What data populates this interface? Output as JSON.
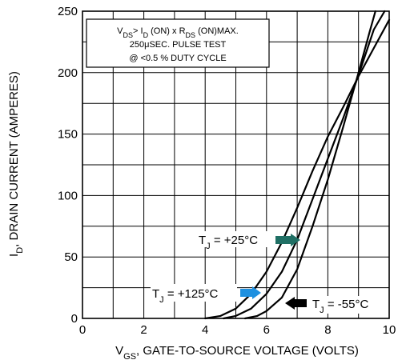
{
  "chart_data": {
    "type": "line",
    "xlabel": {
      "main": "V",
      "sub": "GS",
      "rest": ", GATE-TO-SOURCE VOLTAGE (VOLTS)"
    },
    "ylabel": {
      "main": "I",
      "sub": "D",
      "rest": ", DRAIN CURRENT (AMPERES)"
    },
    "xlim": [
      0,
      10
    ],
    "ylim": [
      0,
      250
    ],
    "xticks": [
      0,
      2,
      4,
      6,
      8,
      10
    ],
    "yticks": [
      0,
      50,
      100,
      150,
      200,
      250
    ],
    "grid": true,
    "note": {
      "line1": {
        "a": "V",
        "a_sub": "DS",
        "b": "> I",
        "b_sub": "D",
        "c": " (ON) x  R",
        "c_sub": "DS",
        "d": " (ON)MAX."
      },
      "line2": "250μSEC.  PULSE  TEST",
      "line3": "@  <0.5 %  DUTY  CYCLE"
    },
    "series": [
      {
        "name": {
          "main": "T",
          "sub": "J",
          "rest": " = +125°C"
        },
        "color": "#1e90e0",
        "points": [
          [
            4.0,
            0
          ],
          [
            4.5,
            2
          ],
          [
            5.0,
            8
          ],
          [
            5.5,
            20
          ],
          [
            6.0,
            38
          ],
          [
            6.5,
            62
          ],
          [
            7.0,
            90
          ],
          [
            7.5,
            120
          ],
          [
            8.0,
            148
          ],
          [
            8.5,
            172
          ],
          [
            9.0,
            197
          ],
          [
            9.5,
            220
          ],
          [
            10.0,
            243
          ]
        ]
      },
      {
        "name": {
          "main": "T",
          "sub": "J",
          "rest": " = +25°C"
        },
        "color": "#1f6f64",
        "points": [
          [
            4.6,
            0
          ],
          [
            5.0,
            2
          ],
          [
            5.5,
            8
          ],
          [
            6.0,
            20
          ],
          [
            6.5,
            38
          ],
          [
            7.0,
            64
          ],
          [
            7.5,
            97
          ],
          [
            8.0,
            130
          ],
          [
            8.5,
            163
          ],
          [
            9.0,
            198
          ],
          [
            9.5,
            235
          ],
          [
            9.85,
            250
          ]
        ]
      },
      {
        "name": {
          "main": "T",
          "sub": "J",
          "rest": " = -55°C"
        },
        "color": "#000000",
        "points": [
          [
            5.3,
            0
          ],
          [
            5.7,
            2
          ],
          [
            6.0,
            6
          ],
          [
            6.5,
            17
          ],
          [
            7.0,
            40
          ],
          [
            7.5,
            75
          ],
          [
            8.0,
            113
          ],
          [
            8.5,
            156
          ],
          [
            9.0,
            200
          ],
          [
            9.35,
            232
          ],
          [
            9.55,
            250
          ]
        ]
      }
    ]
  }
}
